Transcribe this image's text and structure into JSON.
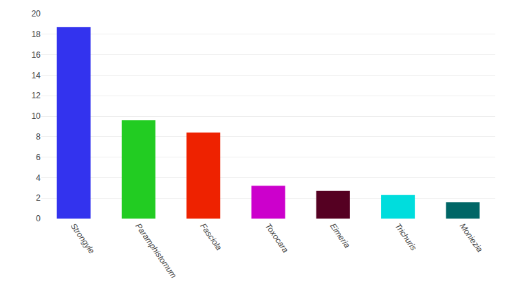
{
  "chart_data": {
    "type": "bar",
    "categories": [
      "Strongyle",
      "Paramphistomum",
      "Fasciola",
      "Toxocara",
      "Eimeria",
      "Trichuris",
      "Moniezia"
    ],
    "values": [
      18.7,
      9.6,
      8.4,
      3.2,
      2.7,
      2.3,
      1.6
    ],
    "colors": [
      "#3333ee",
      "#22cc22",
      "#ee2200",
      "#cc00cc",
      "#550022",
      "#00dddd",
      "#006666"
    ],
    "ylim": [
      0,
      20
    ],
    "yticks": [
      0,
      2,
      4,
      6,
      8,
      10,
      12,
      14,
      16,
      18,
      20
    ],
    "grid": true
  }
}
